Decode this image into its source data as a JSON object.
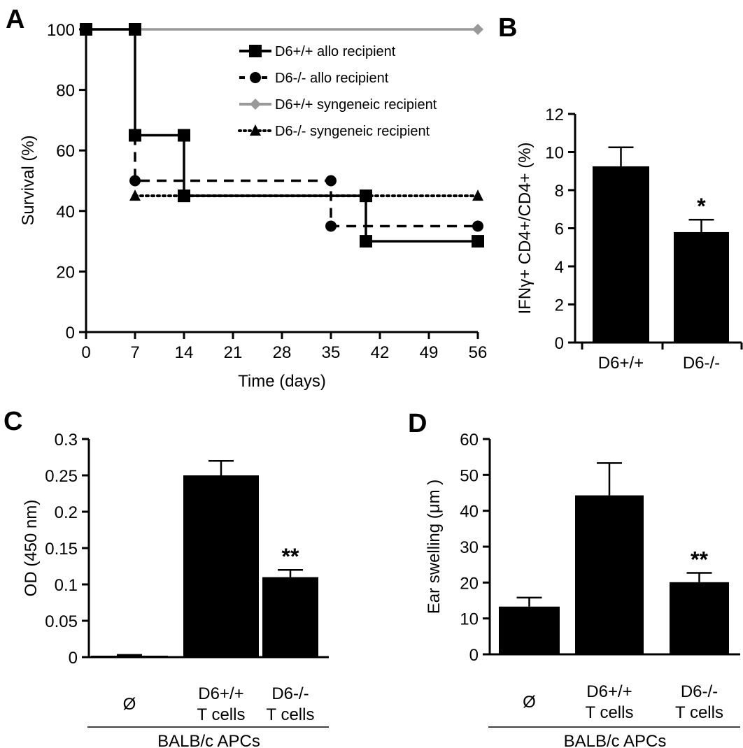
{
  "chart_data": [
    {
      "panel": "A",
      "type": "line",
      "xlabel": "Time (days)",
      "ylabel": "Survival (%)",
      "xlim": [
        0,
        56
      ],
      "ylim": [
        0,
        100
      ],
      "xticks": [
        "0",
        "7",
        "14",
        "21",
        "28",
        "35",
        "42",
        "49",
        "56"
      ],
      "yticks": [
        "0",
        "20",
        "40",
        "60",
        "80",
        "100"
      ],
      "legend_position": "top-right",
      "series": [
        {
          "name": "D6+/+ allo recipient",
          "style": "solid",
          "marker": "square",
          "color": "#000000",
          "x": [
            0,
            7,
            7,
            14,
            14,
            40,
            40,
            56
          ],
          "y": [
            100,
            100,
            65,
            65,
            45,
            45,
            30,
            30
          ],
          "markers_x": [
            0,
            7,
            7,
            14,
            14,
            40,
            40,
            56
          ],
          "markers_y": [
            100,
            100,
            65,
            65,
            45,
            45,
            30,
            30
          ]
        },
        {
          "name": "D6-/- allo recipient",
          "style": "dashed",
          "marker": "circle",
          "color": "#000000",
          "x": [
            7,
            7,
            35,
            35,
            56
          ],
          "y": [
            65,
            50,
            50,
            35,
            35
          ],
          "markers_x": [
            7,
            35,
            35,
            56
          ],
          "markers_y": [
            50,
            50,
            35,
            35
          ]
        },
        {
          "name": "D6+/+ syngeneic recipient",
          "style": "solid",
          "marker": "diamond",
          "color": "#999999",
          "x": [
            0,
            56
          ],
          "y": [
            100,
            100
          ],
          "markers_x": [
            56
          ],
          "markers_y": [
            100
          ]
        },
        {
          "name": "D6-/- syngeneic recipient",
          "style": "dotted",
          "marker": "triangle",
          "color": "#000000",
          "x": [
            7,
            56
          ],
          "y": [
            45,
            45
          ],
          "markers_x": [
            7,
            56
          ],
          "markers_y": [
            45,
            45
          ]
        }
      ]
    },
    {
      "panel": "B",
      "type": "bar",
      "ylabel": "IFNγ+ CD4+/CD4+ (%)",
      "ylim": [
        0,
        12
      ],
      "yticks": [
        "0",
        "2",
        "4",
        "6",
        "8",
        "10",
        "12"
      ],
      "categories": [
        "D6+/+",
        "D6-/-"
      ],
      "values": [
        9.25,
        5.8
      ],
      "errors": [
        1.0,
        0.65
      ],
      "annotations": [
        "",
        "*"
      ]
    },
    {
      "panel": "C",
      "type": "bar",
      "ylabel": "OD (450 nm)",
      "ylim": [
        0,
        0.3
      ],
      "yticks": [
        "0",
        "0.05",
        "0.1",
        "0.15",
        "0.2",
        "0.25",
        "0.3"
      ],
      "categories": [
        [
          "Ø"
        ],
        [
          "D6+/+",
          "T cells"
        ],
        [
          "D6-/-",
          "T cells"
        ]
      ],
      "group_label": "BALB/c APCs",
      "values": [
        0.002,
        0.25,
        0.11
      ],
      "errors": [
        0.001,
        0.02,
        0.01
      ],
      "annotations": [
        "",
        "",
        "**"
      ]
    },
    {
      "panel": "D",
      "type": "bar",
      "ylabel": "Ear swelling (μm )",
      "ylim": [
        0,
        60
      ],
      "yticks": [
        "0",
        "10",
        "20",
        "30",
        "40",
        "50",
        "60"
      ],
      "categories": [
        [
          "Ø"
        ],
        [
          "D6+/+",
          "T cells"
        ],
        [
          "D6-/-",
          "T cells"
        ]
      ],
      "group_label": "BALB/c APCs",
      "values": [
        13.3,
        44.3,
        20.1
      ],
      "errors": [
        2.5,
        9.0,
        2.6
      ],
      "annotations": [
        "",
        "",
        "**"
      ]
    }
  ]
}
